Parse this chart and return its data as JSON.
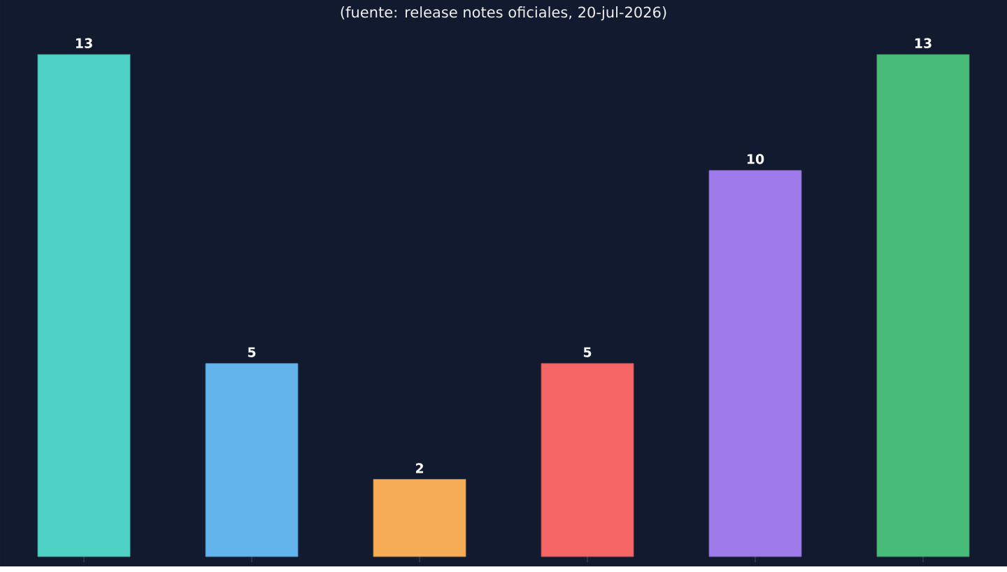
{
  "chart_data": {
    "type": "bar",
    "subtitle": "(fuente: release notes oficiales, 20-jul-2026)",
    "categories": [
      null,
      null,
      null,
      null,
      null,
      null
    ],
    "values": [
      13,
      5,
      2,
      5,
      10,
      13
    ],
    "colors": [
      "#4fd1c5",
      "#63b3ed",
      "#f6ad55",
      "#f56565",
      "#9f7aea",
      "#48bb78"
    ],
    "data_labels": true
  }
}
